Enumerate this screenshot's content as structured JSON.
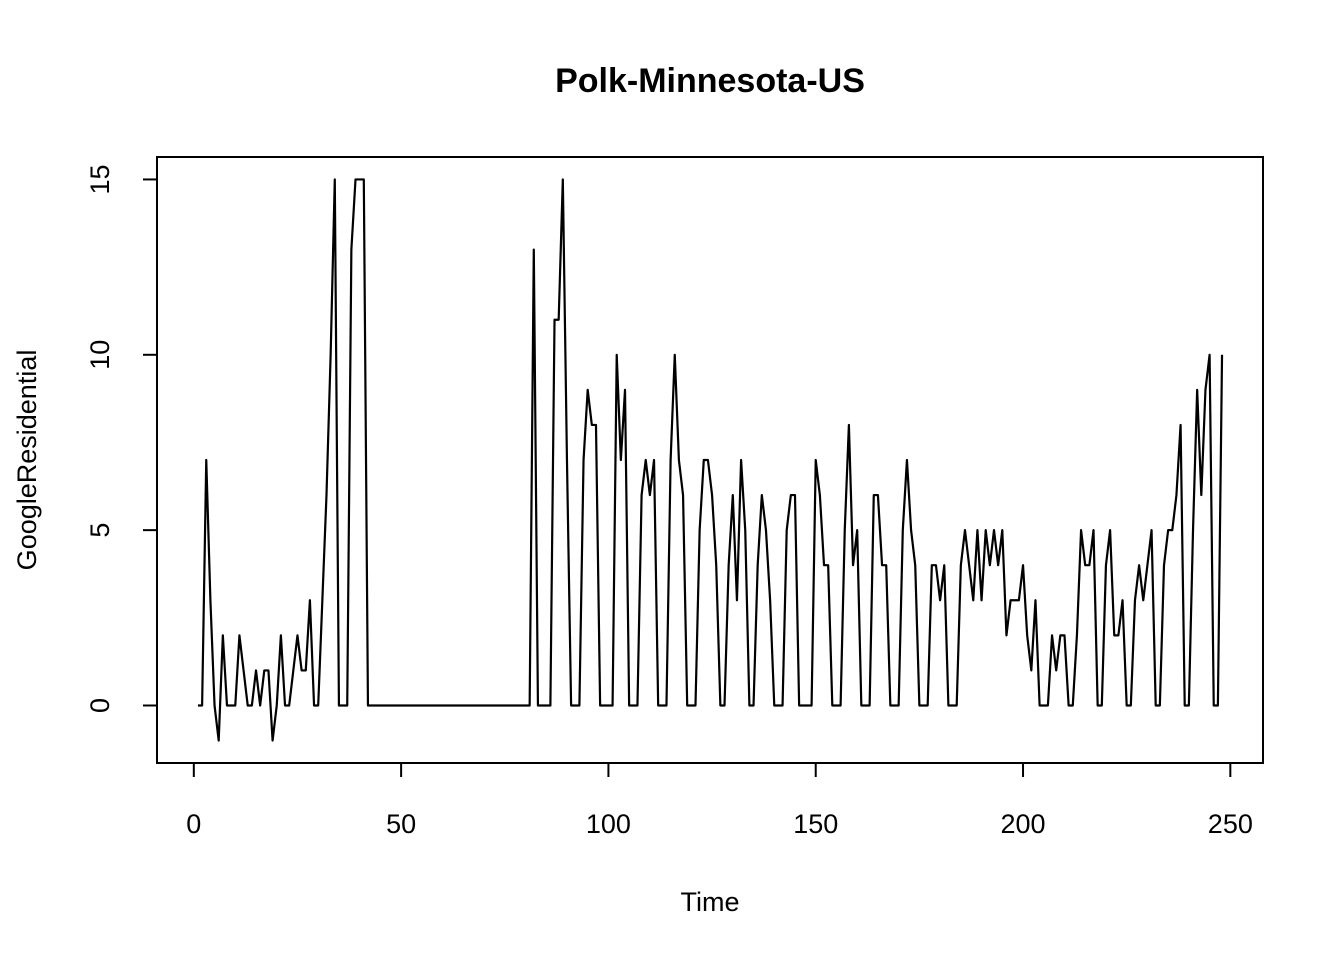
{
  "chart_data": {
    "type": "line",
    "title": "Polk-Minnesota-US",
    "x_label": "Time",
    "y_label": "GoogleResidential",
    "x": [
      1,
      2,
      3,
      4,
      5,
      6,
      7,
      8,
      9,
      10,
      11,
      12,
      13,
      14,
      15,
      16,
      17,
      18,
      19,
      20,
      21,
      22,
      23,
      24,
      25,
      26,
      27,
      28,
      29,
      30,
      31,
      32,
      33,
      34,
      35,
      36,
      37,
      38,
      39,
      40,
      41,
      42,
      43,
      44,
      45,
      46,
      47,
      48,
      49,
      50,
      51,
      52,
      53,
      54,
      55,
      56,
      57,
      58,
      59,
      60,
      61,
      62,
      63,
      64,
      65,
      66,
      67,
      68,
      69,
      70,
      71,
      72,
      73,
      74,
      75,
      76,
      77,
      78,
      79,
      80,
      81,
      82,
      83,
      84,
      85,
      86,
      87,
      88,
      89,
      90,
      91,
      92,
      93,
      94,
      95,
      96,
      97,
      98,
      99,
      100,
      101,
      102,
      103,
      104,
      105,
      106,
      107,
      108,
      109,
      110,
      111,
      112,
      113,
      114,
      115,
      116,
      117,
      118,
      119,
      120,
      121,
      122,
      123,
      124,
      125,
      126,
      127,
      128,
      129,
      130,
      131,
      132,
      133,
      134,
      135,
      136,
      137,
      138,
      139,
      140,
      141,
      142,
      143,
      144,
      145,
      146,
      147,
      148,
      149,
      150,
      151,
      152,
      153,
      154,
      155,
      156,
      157,
      158,
      159,
      160,
      161,
      162,
      163,
      164,
      165,
      166,
      167,
      168,
      169,
      170,
      171,
      172,
      173,
      174,
      175,
      176,
      177,
      178,
      179,
      180,
      181,
      182,
      183,
      184,
      185,
      186,
      187,
      188,
      189,
      190,
      191,
      192,
      193,
      194,
      195,
      196,
      197,
      198,
      199,
      200,
      201,
      202,
      203,
      204,
      205,
      206,
      207,
      208,
      209,
      210,
      211,
      212,
      213,
      214,
      215,
      216,
      217,
      218,
      219,
      220,
      221,
      222,
      223,
      224,
      225,
      226,
      227,
      228,
      229,
      230,
      231,
      232,
      233,
      234,
      235,
      236,
      237,
      238,
      239,
      240,
      241,
      242,
      243,
      244,
      245,
      246,
      247,
      248
    ],
    "series": [
      {
        "name": "GoogleResidential",
        "color": "#000000",
        "values": [
          0,
          0,
          7,
          3,
          0,
          -1,
          2,
          0,
          0,
          0,
          2,
          1,
          0,
          0,
          1,
          0,
          1,
          1,
          -1,
          0,
          2,
          0,
          0,
          1,
          2,
          1,
          1,
          3,
          0,
          0,
          3,
          6,
          10,
          15,
          0,
          0,
          0,
          13,
          15,
          15,
          15,
          0,
          0,
          0,
          0,
          0,
          0,
          0,
          0,
          0,
          0,
          0,
          0,
          0,
          0,
          0,
          0,
          0,
          0,
          0,
          0,
          0,
          0,
          0,
          0,
          0,
          0,
          0,
          0,
          0,
          0,
          0,
          0,
          0,
          0,
          0,
          0,
          0,
          0,
          0,
          0,
          13,
          0,
          0,
          0,
          0,
          11,
          11,
          15,
          7,
          0,
          0,
          0,
          7,
          9,
          8,
          8,
          0,
          0,
          0,
          0,
          10,
          7,
          9,
          0,
          0,
          0,
          6,
          7,
          6,
          7,
          0,
          0,
          0,
          7,
          10,
          7,
          6,
          0,
          0,
          0,
          5,
          7,
          7,
          6,
          4,
          0,
          0,
          4,
          6,
          3,
          7,
          5,
          0,
          0,
          4,
          6,
          5,
          3,
          0,
          0,
          0,
          5,
          6,
          6,
          0,
          0,
          0,
          0,
          7,
          6,
          4,
          4,
          0,
          0,
          0,
          5,
          8,
          4,
          5,
          0,
          0,
          0,
          6,
          6,
          4,
          4,
          0,
          0,
          0,
          5,
          7,
          5,
          4,
          0,
          0,
          0,
          4,
          4,
          3,
          4,
          0,
          0,
          0,
          4,
          5,
          4,
          3,
          5,
          3,
          5,
          4,
          5,
          4,
          5,
          2,
          3,
          3,
          3,
          4,
          2,
          1,
          3,
          0,
          0,
          0,
          2,
          1,
          2,
          2,
          0,
          0,
          2,
          5,
          4,
          4,
          5,
          0,
          0,
          4,
          5,
          2,
          2,
          3,
          0,
          0,
          3,
          4,
          3,
          4,
          5,
          0,
          0,
          4,
          5,
          5,
          6,
          8,
          0,
          0,
          5,
          9,
          6,
          9,
          10,
          0,
          0,
          10
        ]
      }
    ],
    "xlim": [
      -8.88,
      257.88
    ],
    "ylim": [
      -1.64,
      15.64
    ],
    "xticks": [
      0,
      50,
      100,
      150,
      200,
      250
    ],
    "yticks": [
      0,
      5,
      10,
      15
    ]
  }
}
